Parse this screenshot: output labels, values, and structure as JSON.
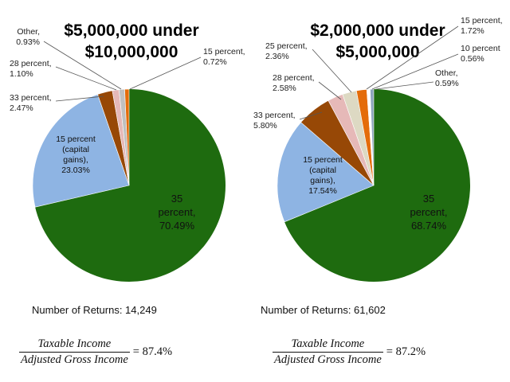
{
  "chart_data": [
    {
      "type": "pie",
      "title_lines": [
        "$5,000,000 under",
        "$10,000,000"
      ],
      "slices": [
        {
          "label_lines": [
            "35",
            "percent,",
            "70.49%"
          ],
          "value": 70.49,
          "color": "#1e6b0f",
          "placement": "inside"
        },
        {
          "label_lines": [
            "15 percent",
            "(capital",
            "gains),",
            "23.03%"
          ],
          "value": 23.03,
          "color": "#8eb4e3",
          "placement": "inside"
        },
        {
          "label_lines": [
            "33 percent,",
            "2.47%"
          ],
          "value": 2.47,
          "color": "#974806",
          "placement": "outside"
        },
        {
          "label_lines": [
            "28 percent,",
            "1.10%"
          ],
          "value": 1.1,
          "color": "#e6b9b8",
          "placement": "outside"
        },
        {
          "label_lines": [
            "Other,",
            "0.93%"
          ],
          "value": 0.93,
          "color": "#c0c0c0",
          "placement": "outside"
        },
        {
          "label_lines": [
            "15 percent,",
            "0.72%"
          ],
          "value": 0.72,
          "color": "#e46c0a",
          "placement": "outside"
        }
      ],
      "returns_label": "Number of Returns: 14,249",
      "ratio": {
        "numerator": "Taxable Income",
        "denominator": "Adjusted Gross Income",
        "value": "= 87.4%"
      }
    },
    {
      "type": "pie",
      "title_lines": [
        "$2,000,000 under",
        "$5,000,000"
      ],
      "slices": [
        {
          "label_lines": [
            "35",
            "percent,",
            "68.74%"
          ],
          "value": 68.74,
          "color": "#1e6b0f",
          "placement": "inside"
        },
        {
          "label_lines": [
            "15 percent",
            "(capital",
            "gains),",
            "17.54%"
          ],
          "value": 17.54,
          "color": "#8eb4e3",
          "placement": "inside"
        },
        {
          "label_lines": [
            "33 percent,",
            "5.80%"
          ],
          "value": 5.8,
          "color": "#974806",
          "placement": "outside"
        },
        {
          "label_lines": [
            "28 percent,",
            "2.58%"
          ],
          "value": 2.58,
          "color": "#e6b9b8",
          "placement": "outside"
        },
        {
          "label_lines": [
            "25 percent,",
            "2.36%"
          ],
          "value": 2.36,
          "color": "#ddd9c3",
          "placement": "outside"
        },
        {
          "label_lines": [
            "15 percent,",
            "1.72%"
          ],
          "value": 1.72,
          "color": "#e46c0a",
          "placement": "outside"
        },
        {
          "label_lines": [
            "10 percent",
            "0.56%"
          ],
          "value": 0.56,
          "color": "#ffffff",
          "placement": "outside"
        },
        {
          "label_lines": [
            "Other,",
            "0.59%"
          ],
          "value": 0.59,
          "color": "#8da4bd",
          "placement": "outside"
        }
      ],
      "returns_label": "Number of Returns: 61,602",
      "ratio": {
        "numerator": "Taxable Income",
        "denominator": "Adjusted Gross Income",
        "value": "= 87.2%"
      }
    }
  ]
}
